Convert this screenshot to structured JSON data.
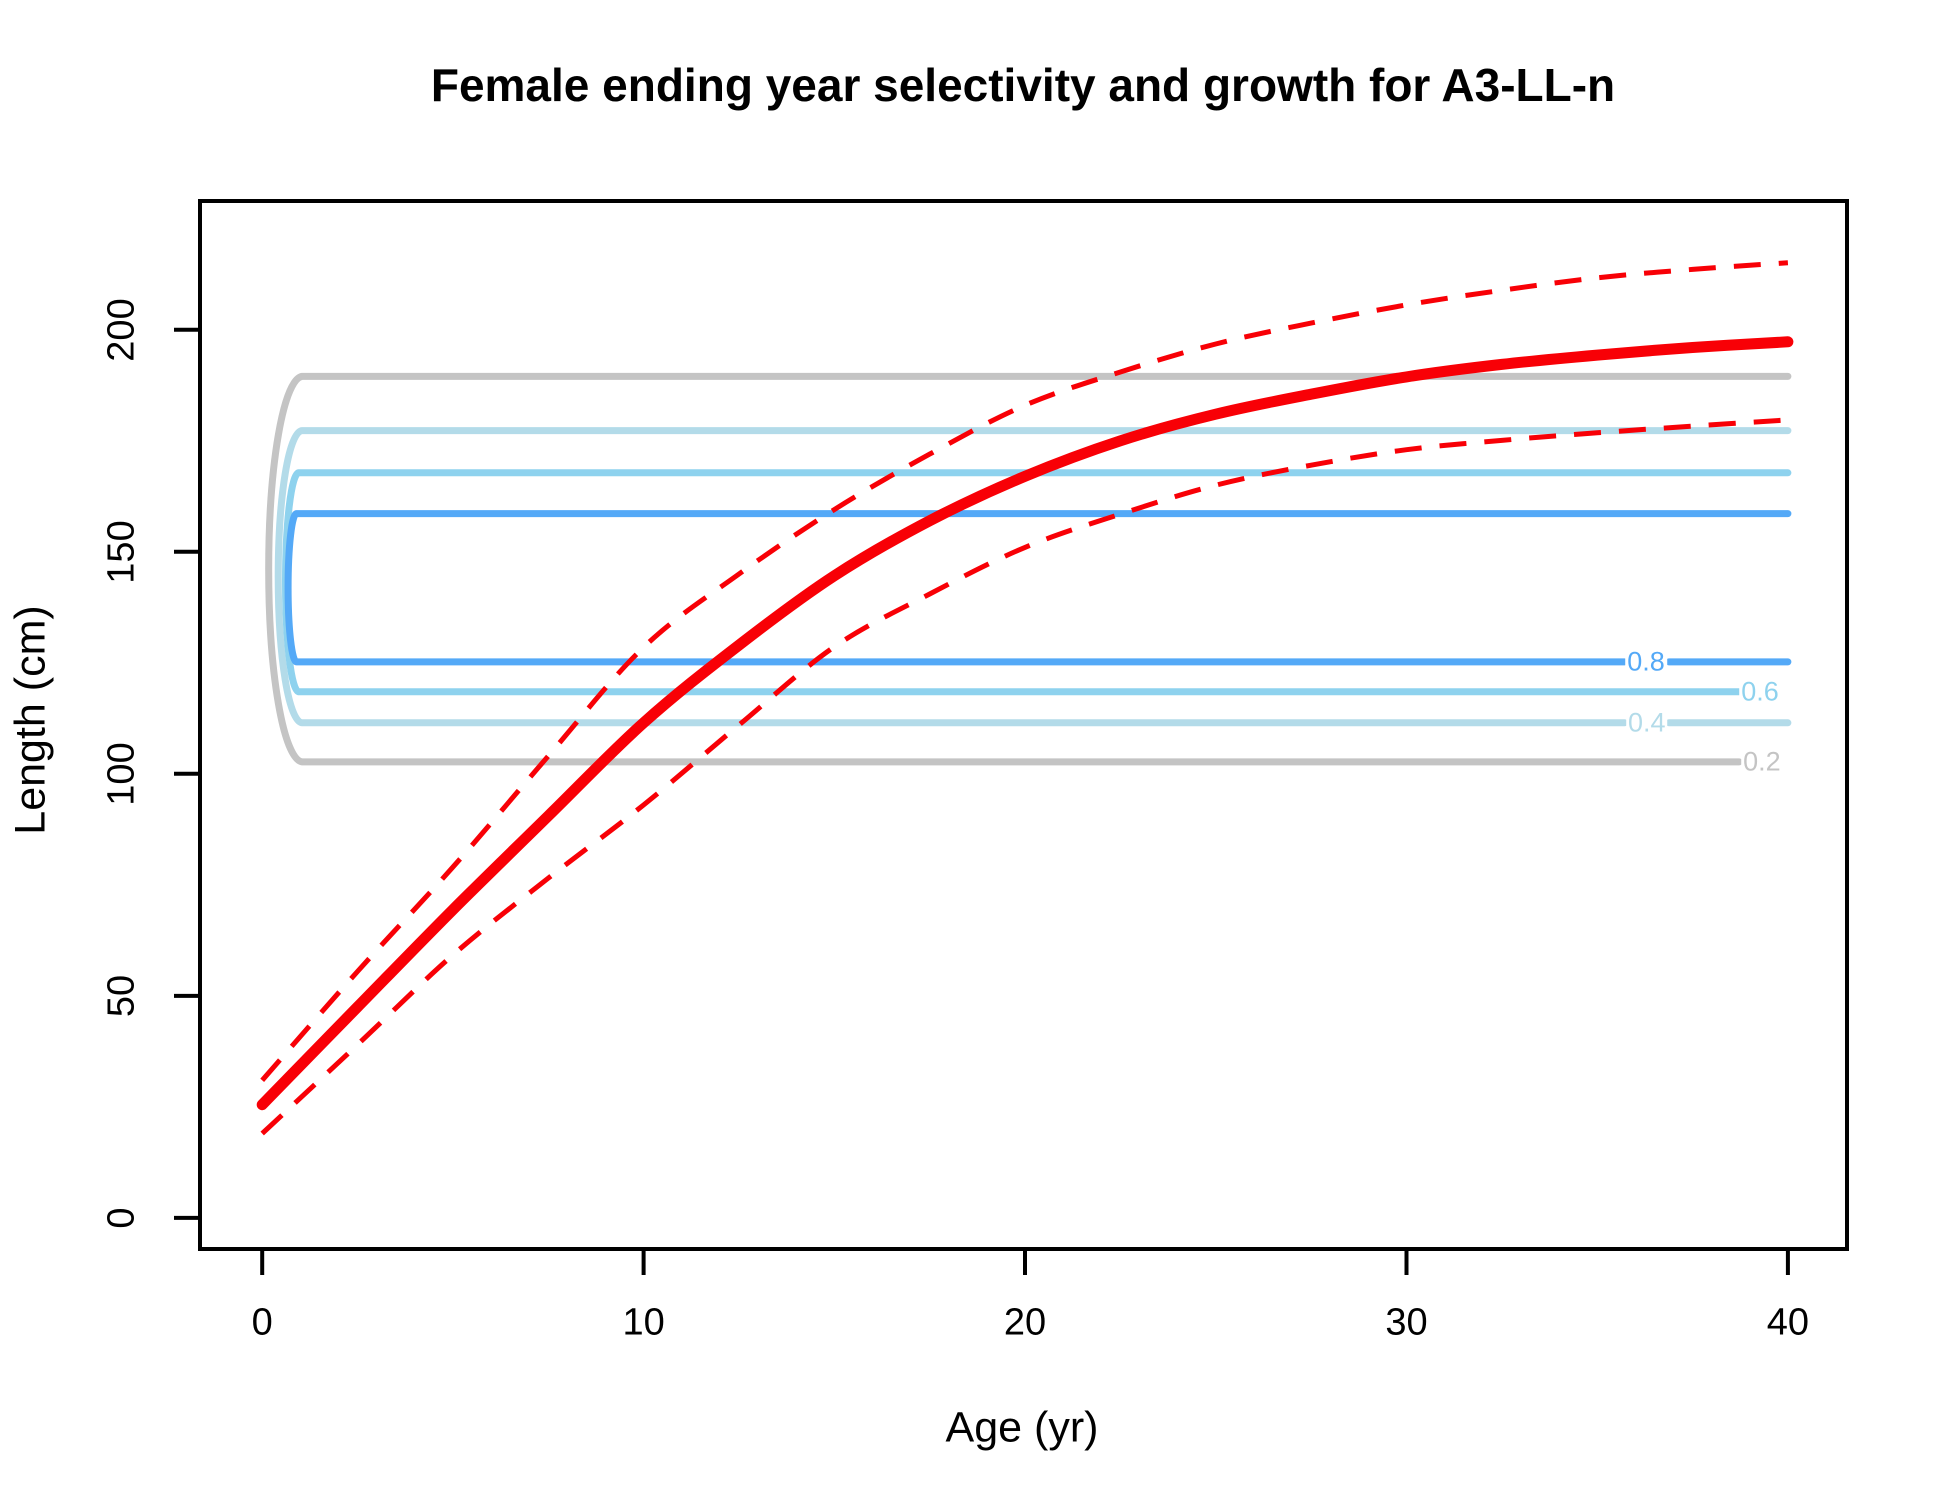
{
  "title": "Female ending year selectivity and growth for A3-LL-n",
  "chart_data": {
    "type": "line",
    "title": "Female ending year selectivity and growth for A3-LL-n",
    "xlabel": "Age (yr)",
    "ylabel": "Length (cm)",
    "xlim": [
      -1.63,
      41.55
    ],
    "ylim": [
      -7,
      229
    ],
    "x_ticks": [
      0,
      10,
      20,
      30,
      40
    ],
    "y_ticks": [
      0,
      50,
      100,
      150,
      200
    ],
    "grid": false,
    "legend": "none",
    "colors": {
      "growth_mean": "#f80006",
      "growth_ci": "#f80006",
      "contour_02": "#c4c4c4",
      "contour_04": "#b3dbe9",
      "contour_06": "#8ed2ee",
      "contour_08": "#54a9f7"
    },
    "ages": [
      0,
      2.5,
      5,
      7.5,
      10,
      12.5,
      15,
      17.5,
      20,
      22.5,
      25,
      27.5,
      30,
      32.5,
      35,
      37.5,
      40
    ],
    "series": [
      {
        "name": "growth-curve-upper",
        "label": "upper 95% interval",
        "style": "dashed",
        "color": "#f80006",
        "width": 5,
        "values": [
          31,
          55.5,
          79,
          104,
          128.5,
          145,
          159.5,
          172,
          183,
          190.5,
          196.8,
          201.5,
          205.6,
          208.9,
          211.7,
          213.6,
          215.1
        ]
      },
      {
        "name": "growth-curve-lower",
        "label": "lower 95% interval",
        "style": "dashed",
        "color": "#f80006",
        "width": 5,
        "values": [
          19,
          39,
          59.2,
          76.5,
          93,
          111,
          128.6,
          140.5,
          151,
          158.5,
          165,
          169.5,
          173,
          175.1,
          176.8,
          178.3,
          179.7
        ]
      },
      {
        "name": "growth-curve-mean",
        "label": "mean growth curve",
        "style": "solid",
        "color": "#f80006",
        "width": 11,
        "values": [
          25.5,
          47.5,
          69.4,
          90.5,
          111.5,
          129,
          144.6,
          157,
          167,
          175,
          181,
          185.5,
          189.4,
          192.2,
          194.3,
          196,
          197.3
        ]
      }
    ],
    "selectivity_contours": [
      {
        "level": 0.2,
        "label": "0.2",
        "color": "#c4c4c4",
        "top_length": 189.5,
        "bottom_length": 102.7,
        "corner_age": 1.05,
        "min_age": 0.15,
        "bottom_end_age": 38.72,
        "label_gap": null,
        "label_age": 39.32
      },
      {
        "level": 0.4,
        "label": "0.4",
        "color": "#b3dbe9",
        "top_length": 177.3,
        "bottom_length": 111.5,
        "corner_age": 1.05,
        "min_age": 0.42,
        "bottom_end_age": 40,
        "label_gap": [
          35.72,
          36.88
        ],
        "label_age": 36.3
      },
      {
        "level": 0.6,
        "label": "0.6",
        "color": "#8ed2ee",
        "top_length": 167.8,
        "bottom_length": 118.5,
        "corner_age": 0.95,
        "min_age": 0.6,
        "bottom_end_age": 38.72,
        "label_gap": null,
        "label_age": 39.27
      },
      {
        "level": 0.8,
        "label": "0.8",
        "color": "#54a9f7",
        "top_length": 158.6,
        "bottom_length": 125.2,
        "corner_age": 0.9,
        "min_age": 0.68,
        "bottom_end_age": 40,
        "label_gap": [
          35.72,
          36.88
        ],
        "label_age": 36.28
      }
    ]
  }
}
